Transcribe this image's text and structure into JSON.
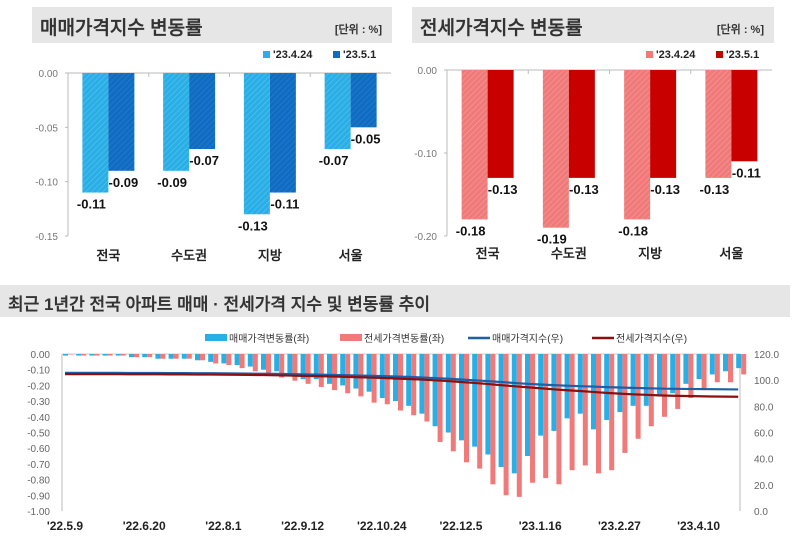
{
  "colors": {
    "sale_prev": "#29aee6",
    "sale_curr": "#0f6cc0",
    "jeonse_prev": "#f07a7a",
    "jeonse_curr": "#c80000",
    "sale_index": "#1e5fa8",
    "jeonse_index": "#8b0f0f",
    "titlebar": "#e6e6e6"
  },
  "chart_data": [
    {
      "type": "bar",
      "title": "매매가격지수 변동률",
      "unit": "[단위 : %]",
      "categories": [
        "전국",
        "수도권",
        "지방",
        "서울"
      ],
      "series": [
        {
          "name": "'23.4.24",
          "values": [
            -0.11,
            -0.09,
            -0.13,
            -0.07
          ]
        },
        {
          "name": "'23.5.1",
          "values": [
            -0.09,
            -0.07,
            -0.11,
            -0.05
          ]
        }
      ],
      "ylim": [
        -0.15,
        0
      ],
      "yticks": [
        "0.00",
        "-0.05",
        "-0.10",
        "-0.15"
      ],
      "legend": "top-right"
    },
    {
      "type": "bar",
      "title": "전세가격지수 변동률",
      "unit": "[단위 : %]",
      "categories": [
        "전국",
        "수도권",
        "지방",
        "서울"
      ],
      "series": [
        {
          "name": "'23.4.24",
          "values": [
            -0.18,
            -0.19,
            -0.18,
            -0.13
          ]
        },
        {
          "name": "'23.5.1",
          "values": [
            -0.13,
            -0.13,
            -0.13,
            -0.11
          ]
        }
      ],
      "ylim": [
        -0.2,
        0
      ],
      "yticks": [
        "0.00",
        "-0.10",
        "-0.20"
      ],
      "legend": "top-right"
    },
    {
      "type": "bar+line",
      "title": "최근 1년간 전국 아파트 매매 · 전세가격 지수 및 변동률 추이",
      "xticks": [
        "'22.5.9",
        "'22.6.20",
        "'22.8.1",
        "'22.9.12",
        "'22.10.24",
        "'22.12.5",
        "'23.1.16",
        "'23.2.27",
        "'23.4.10"
      ],
      "ylim_left": [
        -1.0,
        0
      ],
      "yticks_left": [
        "0.00",
        "-0.10",
        "-0.20",
        "-0.30",
        "-0.40",
        "-0.50",
        "-0.60",
        "-0.70",
        "-0.80",
        "-0.90",
        "-1.00"
      ],
      "ylim_right": [
        0,
        120
      ],
      "yticks_right": [
        "120.0",
        "100.0",
        "80.0",
        "60.0",
        "40.0",
        "20.0",
        "0.0"
      ],
      "legend": "top",
      "series": [
        {
          "name": "매매가격변동률(좌)",
          "kind": "bar",
          "axis": "left",
          "values": [
            -0.01,
            -0.01,
            -0.01,
            -0.01,
            -0.01,
            -0.02,
            -0.02,
            -0.03,
            -0.03,
            -0.03,
            -0.04,
            -0.05,
            -0.06,
            -0.07,
            -0.08,
            -0.1,
            -0.11,
            -0.14,
            -0.16,
            -0.16,
            -0.19,
            -0.2,
            -0.22,
            -0.24,
            -0.28,
            -0.3,
            -0.33,
            -0.38,
            -0.46,
            -0.5,
            -0.55,
            -0.59,
            -0.64,
            -0.72,
            -0.76,
            -0.65,
            -0.52,
            -0.49,
            -0.41,
            -0.38,
            -0.48,
            -0.42,
            -0.37,
            -0.33,
            -0.33,
            -0.27,
            -0.25,
            -0.19,
            -0.16,
            -0.13,
            -0.11,
            -0.09
          ]
        },
        {
          "name": "전세가격변동률(좌)",
          "kind": "bar",
          "axis": "left",
          "values": [
            0.0,
            -0.01,
            -0.01,
            -0.01,
            -0.01,
            -0.02,
            -0.02,
            -0.03,
            -0.03,
            -0.03,
            -0.04,
            -0.06,
            -0.07,
            -0.09,
            -0.11,
            -0.13,
            -0.15,
            -0.17,
            -0.19,
            -0.21,
            -0.23,
            -0.25,
            -0.27,
            -0.31,
            -0.32,
            -0.36,
            -0.39,
            -0.43,
            -0.56,
            -0.62,
            -0.69,
            -0.73,
            -0.83,
            -0.9,
            -0.91,
            -0.82,
            -0.79,
            -0.83,
            -0.74,
            -0.71,
            -0.76,
            -0.74,
            -0.63,
            -0.54,
            -0.46,
            -0.4,
            -0.35,
            -0.28,
            -0.23,
            -0.18,
            -0.18,
            -0.13
          ]
        },
        {
          "name": "매매가격지수(우)",
          "kind": "line",
          "axis": "right",
          "values": [
            105.6,
            105.6,
            105.6,
            105.6,
            105.6,
            105.5,
            105.5,
            105.5,
            105.4,
            105.4,
            105.3,
            105.3,
            105.2,
            105.1,
            105.0,
            104.9,
            104.8,
            104.6,
            104.4,
            104.3,
            104.1,
            103.9,
            103.6,
            103.4,
            103.1,
            102.8,
            102.5,
            102.1,
            101.6,
            101.1,
            100.5,
            99.9,
            99.3,
            98.6,
            97.9,
            97.2,
            96.7,
            96.2,
            95.8,
            95.4,
            95.1,
            94.7,
            94.4,
            94.1,
            93.8,
            93.6,
            93.4,
            93.3,
            93.2,
            93.1,
            93.0,
            92.9
          ]
        },
        {
          "name": "전세가격지수(우)",
          "kind": "line",
          "axis": "right",
          "values": [
            104.6,
            104.6,
            104.6,
            104.6,
            104.6,
            104.5,
            104.5,
            104.5,
            104.4,
            104.4,
            104.3,
            104.3,
            104.2,
            104.1,
            104.0,
            103.9,
            103.7,
            103.5,
            103.3,
            103.1,
            102.9,
            102.6,
            102.3,
            102.0,
            101.7,
            101.3,
            100.9,
            100.5,
            99.9,
            99.3,
            98.6,
            97.9,
            97.1,
            96.2,
            95.4,
            94.6,
            93.8,
            93.0,
            92.3,
            91.7,
            91.0,
            90.3,
            89.7,
            89.2,
            88.8,
            88.4,
            88.1,
            87.9,
            87.7,
            87.5,
            87.4,
            87.3
          ]
        }
      ]
    }
  ]
}
